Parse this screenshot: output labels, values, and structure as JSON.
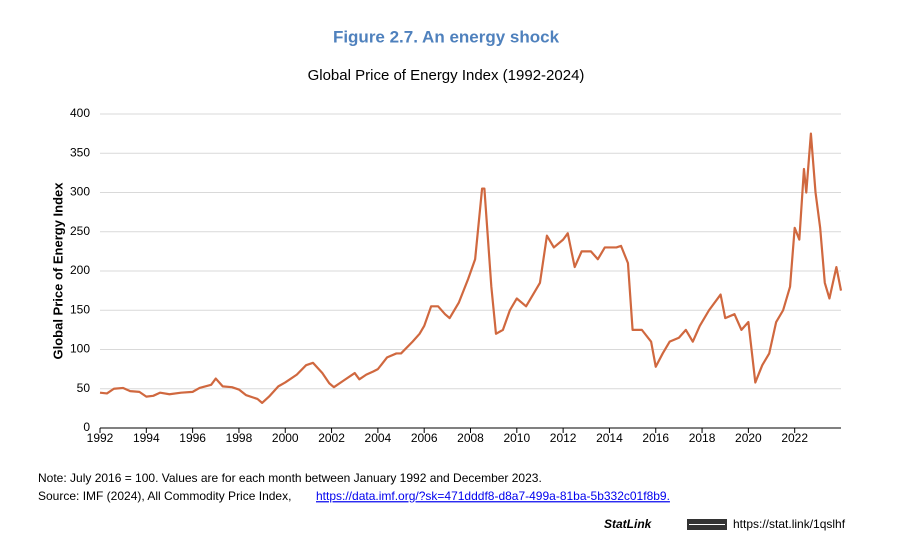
{
  "chart_data": {
    "type": "line",
    "title": "Figure 2.7. An energy shock",
    "subtitle": "Global Price of Energy Index (1992-2024)",
    "y_label": "Global Price of Energy Index",
    "color": "#d0683f",
    "grid": true,
    "xlim": [
      1992,
      2024
    ],
    "ylim": [
      0,
      400
    ],
    "xticks": [
      1992,
      1994,
      1996,
      1998,
      2000,
      2002,
      2004,
      2006,
      2008,
      2010,
      2012,
      2014,
      2016,
      2018,
      2020,
      2022
    ],
    "yticks": [
      0,
      50,
      100,
      150,
      200,
      250,
      300,
      350,
      400
    ],
    "x": [
      1992.0,
      1992.3,
      1992.6,
      1993.0,
      1993.3,
      1993.7,
      1994.0,
      1994.3,
      1994.6,
      1995.0,
      1995.5,
      1996.0,
      1996.3,
      1996.8,
      1997.0,
      1997.3,
      1997.7,
      1998.0,
      1998.3,
      1998.8,
      1999.0,
      1999.3,
      1999.7,
      2000.0,
      2000.5,
      2000.9,
      2001.2,
      2001.6,
      2001.9,
      2002.1,
      2002.5,
      2003.0,
      2003.2,
      2003.5,
      2003.8,
      2004.0,
      2004.4,
      2004.8,
      2005.0,
      2005.5,
      2005.8,
      2006.0,
      2006.3,
      2006.6,
      2006.9,
      2007.1,
      2007.5,
      2007.9,
      2008.2,
      2008.5,
      2008.6,
      2008.9,
      2009.1,
      2009.4,
      2009.7,
      2010.0,
      2010.4,
      2010.8,
      2011.0,
      2011.3,
      2011.6,
      2012.0,
      2012.2,
      2012.5,
      2012.8,
      2013.2,
      2013.5,
      2013.8,
      2014.3,
      2014.5,
      2014.8,
      2015.0,
      2015.4,
      2015.8,
      2016.0,
      2016.3,
      2016.6,
      2017.0,
      2017.3,
      2017.6,
      2017.9,
      2018.3,
      2018.8,
      2019.0,
      2019.4,
      2019.7,
      2020.0,
      2020.3,
      2020.6,
      2020.9,
      2021.2,
      2021.5,
      2021.8,
      2022.0,
      2022.2,
      2022.4,
      2022.5,
      2022.7,
      2022.9,
      2023.1,
      2023.3,
      2023.5,
      2023.8,
      2024.0
    ],
    "y": [
      45,
      44,
      50,
      51,
      47,
      46,
      40,
      41,
      45,
      43,
      45,
      46,
      51,
      55,
      63,
      53,
      52,
      49,
      42,
      37,
      32,
      40,
      53,
      58,
      68,
      80,
      83,
      70,
      57,
      52,
      60,
      70,
      62,
      68,
      72,
      75,
      90,
      95,
      95,
      110,
      120,
      130,
      155,
      155,
      145,
      140,
      160,
      190,
      215,
      305,
      305,
      180,
      120,
      125,
      150,
      165,
      155,
      175,
      185,
      245,
      230,
      240,
      248,
      205,
      225,
      225,
      215,
      230,
      230,
      232,
      210,
      125,
      125,
      110,
      78,
      95,
      110,
      115,
      125,
      110,
      130,
      150,
      170,
      140,
      145,
      125,
      135,
      58,
      80,
      95,
      135,
      150,
      180,
      255,
      240,
      330,
      300,
      375,
      300,
      255,
      185,
      165,
      205,
      175
    ],
    "note": "Note: July 2016 = 100. Values are for each month between January 1992 and December 2023.",
    "source": "Source: IMF (2024), All Commodity Price Index,",
    "source_link": "https://data.imf.org/?sk=471dddf8-d8a7-499a-81ba-5b332c01f8b9.",
    "statlink_label": "StatLink",
    "statlink_url": "https://stat.link/1qslhf"
  }
}
